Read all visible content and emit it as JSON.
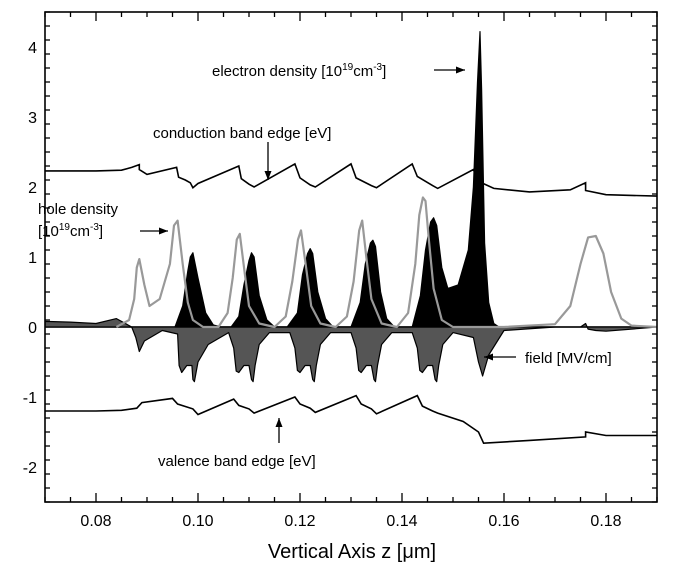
{
  "chart_data": {
    "type": "line",
    "title": "",
    "xlabel": "Vertical Axis z [μm]",
    "ylabel": "",
    "xlim": [
      0.07,
      0.19
    ],
    "ylim": [
      -2.5,
      4.5
    ],
    "x_ticks": [
      0.08,
      0.1,
      0.12,
      0.14,
      0.16,
      0.18
    ],
    "x_tick_labels": [
      "0.08",
      "0.10",
      "0.12",
      "0.14",
      "0.16",
      "0.18"
    ],
    "y_ticks": [
      -2,
      -1,
      0,
      1,
      2,
      3,
      4
    ],
    "y_tick_labels": [
      "-2",
      "-1",
      "0",
      "1",
      "2",
      "3",
      "4"
    ],
    "grid": false,
    "legend": "none",
    "colors": {
      "axes": "#000000",
      "band_edge": "#000000",
      "electron_fill": "#000000",
      "hole_line": "#999999",
      "field_fill": "#555555"
    },
    "series": [
      {
        "key": "conduction",
        "style": "line",
        "x": [
          0.07,
          0.075,
          0.08,
          0.085,
          0.087,
          0.0885,
          0.0885,
          0.09,
          0.0958,
          0.0962,
          0.0975,
          0.0985,
          0.099,
          0.1,
          0.108,
          0.1085,
          0.11,
          0.111,
          0.119,
          0.12,
          0.122,
          0.123,
          0.13,
          0.131,
          0.134,
          0.135,
          0.142,
          0.143,
          0.146,
          0.147,
          0.154,
          0.155,
          0.158,
          0.165,
          0.173,
          0.176,
          0.176,
          0.18,
          0.19
        ],
        "y": [
          2.23,
          2.23,
          2.23,
          2.24,
          2.28,
          2.32,
          2.25,
          2.18,
          2.28,
          2.14,
          2.1,
          2.06,
          1.99,
          2.05,
          2.3,
          2.12,
          2.04,
          2.0,
          2.33,
          2.13,
          2.03,
          2.0,
          2.33,
          2.13,
          2.02,
          1.99,
          2.33,
          2.15,
          2.02,
          1.98,
          2.25,
          2.08,
          1.98,
          1.93,
          1.96,
          2.06,
          1.95,
          1.89,
          1.87
        ]
      },
      {
        "key": "valence",
        "style": "line",
        "x": [
          0.07,
          0.075,
          0.08,
          0.085,
          0.088,
          0.089,
          0.095,
          0.096,
          0.099,
          0.1,
          0.107,
          0.108,
          0.11,
          0.111,
          0.119,
          0.12,
          0.122,
          0.123,
          0.131,
          0.132,
          0.134,
          0.135,
          0.143,
          0.144,
          0.146,
          0.147,
          0.152,
          0.155,
          0.156,
          0.165,
          0.176,
          0.176,
          0.18,
          0.19
        ],
        "y": [
          -1.2,
          -1.2,
          -1.2,
          -1.19,
          -1.16,
          -1.08,
          -1.02,
          -1.1,
          -1.17,
          -1.25,
          -1.03,
          -1.12,
          -1.17,
          -1.23,
          -1.0,
          -1.1,
          -1.16,
          -1.22,
          -0.98,
          -1.1,
          -1.17,
          -1.24,
          -0.98,
          -1.13,
          -1.2,
          -1.23,
          -1.35,
          -1.5,
          -1.66,
          -1.62,
          -1.57,
          -1.5,
          -1.55,
          -1.55
        ]
      },
      {
        "key": "electron",
        "style": "filled",
        "x": [
          0.0955,
          0.097,
          0.098,
          0.0985,
          0.099,
          0.1,
          0.1015,
          0.103,
          0.1045,
          0.1065,
          0.108,
          0.109,
          0.11,
          0.1105,
          0.111,
          0.112,
          0.1135,
          0.115,
          0.1175,
          0.1195,
          0.1205,
          0.1215,
          0.122,
          0.1225,
          0.1235,
          0.125,
          0.1265,
          0.13,
          0.1318,
          0.1328,
          0.1338,
          0.1343,
          0.1348,
          0.1358,
          0.137,
          0.1385,
          0.142,
          0.1436,
          0.1446,
          0.1456,
          0.1462,
          0.1468,
          0.1478,
          0.149,
          0.151,
          0.153,
          0.154,
          0.1548,
          0.1553,
          0.1556,
          0.1562,
          0.157,
          0.158,
          0.159
        ],
        "y": [
          0.0,
          0.3,
          0.8,
          1.0,
          1.06,
          0.7,
          0.2,
          0.03,
          0.0,
          0.0,
          0.15,
          0.6,
          0.95,
          1.06,
          1.0,
          0.45,
          0.1,
          0.0,
          0.0,
          0.2,
          0.75,
          1.05,
          1.12,
          1.05,
          0.5,
          0.12,
          0.0,
          0.0,
          0.35,
          0.9,
          1.2,
          1.24,
          1.15,
          0.5,
          0.12,
          0.0,
          0.0,
          0.45,
          1.1,
          1.5,
          1.56,
          1.45,
          0.85,
          0.55,
          0.6,
          1.1,
          2.0,
          3.5,
          4.22,
          3.4,
          1.2,
          0.35,
          0.05,
          0.0
        ]
      },
      {
        "key": "holes",
        "style": "line",
        "x": [
          0.084,
          0.0865,
          0.0875,
          0.088,
          0.0885,
          0.0895,
          0.0905,
          0.0925,
          0.0945,
          0.0953,
          0.096,
          0.097,
          0.098,
          0.099,
          0.101,
          0.104,
          0.1058,
          0.1068,
          0.1076,
          0.1082,
          0.1092,
          0.11,
          0.112,
          0.115,
          0.1172,
          0.1185,
          0.1196,
          0.1202,
          0.1212,
          0.1222,
          0.124,
          0.127,
          0.1292,
          0.1305,
          0.1316,
          0.1322,
          0.133,
          0.134,
          0.136,
          0.139,
          0.1412,
          0.1426,
          0.1434,
          0.1441,
          0.1446,
          0.1452,
          0.1462,
          0.1478,
          0.15,
          0.16,
          0.17,
          0.173,
          0.175,
          0.1765,
          0.178,
          0.1795,
          0.181,
          0.183,
          0.185,
          0.19
        ],
        "y": [
          0.0,
          0.1,
          0.4,
          0.85,
          0.97,
          0.6,
          0.3,
          0.4,
          0.9,
          1.45,
          1.52,
          0.9,
          0.35,
          0.1,
          0.0,
          0.0,
          0.2,
          0.7,
          1.25,
          1.33,
          0.75,
          0.3,
          0.05,
          0.0,
          0.15,
          0.65,
          1.25,
          1.38,
          0.85,
          0.3,
          0.05,
          0.0,
          0.15,
          0.65,
          1.38,
          1.52,
          1.0,
          0.4,
          0.05,
          0.0,
          0.2,
          0.9,
          1.6,
          1.85,
          1.8,
          1.3,
          0.55,
          0.1,
          0.0,
          0.0,
          0.04,
          0.3,
          0.9,
          1.28,
          1.3,
          1.05,
          0.5,
          0.12,
          0.02,
          0.0
        ]
      },
      {
        "key": "field",
        "style": "filled",
        "x": [
          0.07,
          0.075,
          0.08,
          0.084,
          0.087,
          0.0878,
          0.0885,
          0.0895,
          0.093,
          0.096,
          0.0963,
          0.0968,
          0.0978,
          0.0988,
          0.099,
          0.0993,
          0.1,
          0.102,
          0.106,
          0.107,
          0.1075,
          0.108,
          0.109,
          0.11,
          0.1105,
          0.1108,
          0.1112,
          0.112,
          0.114,
          0.118,
          0.119,
          0.1195,
          0.12,
          0.121,
          0.122,
          0.1225,
          0.1228,
          0.1232,
          0.124,
          0.126,
          0.13,
          0.131,
          0.1315,
          0.132,
          0.133,
          0.134,
          0.1345,
          0.1348,
          0.1352,
          0.136,
          0.138,
          0.142,
          0.143,
          0.1435,
          0.144,
          0.145,
          0.146,
          0.1465,
          0.1468,
          0.1472,
          0.148,
          0.15,
          0.154,
          0.155,
          0.1558,
          0.157,
          0.16,
          0.17,
          0.175,
          0.176,
          0.1765,
          0.178,
          0.18,
          0.19
        ],
        "y": [
          0.08,
          0.07,
          0.05,
          0.12,
          0.0,
          -0.15,
          -0.35,
          -0.2,
          -0.05,
          -0.1,
          -0.55,
          -0.65,
          -0.55,
          -0.55,
          -0.75,
          -0.78,
          -0.5,
          -0.25,
          -0.08,
          -0.3,
          -0.63,
          -0.65,
          -0.55,
          -0.55,
          -0.75,
          -0.78,
          -0.55,
          -0.25,
          -0.08,
          -0.08,
          -0.3,
          -0.62,
          -0.65,
          -0.55,
          -0.55,
          -0.75,
          -0.78,
          -0.55,
          -0.25,
          -0.08,
          -0.08,
          -0.3,
          -0.62,
          -0.65,
          -0.55,
          -0.55,
          -0.75,
          -0.78,
          -0.55,
          -0.25,
          -0.08,
          -0.08,
          -0.3,
          -0.62,
          -0.65,
          -0.55,
          -0.55,
          -0.75,
          -0.78,
          -0.55,
          -0.25,
          -0.08,
          -0.15,
          -0.5,
          -0.7,
          -0.4,
          -0.05,
          0.0,
          0.0,
          0.05,
          -0.03,
          -0.05,
          -0.06,
          0.0
        ]
      }
    ],
    "annotations": [
      {
        "key": "electron",
        "text": "electron density [10",
        "sup1": "19",
        "mid": "cm",
        "sup2": "-3",
        "end": "]"
      },
      {
        "key": "conduction",
        "text": "conduction band edge [eV]"
      },
      {
        "key": "hole1",
        "text": "hole density"
      },
      {
        "key": "hole2",
        "text": "[10",
        "sup1": "19",
        "mid": "cm",
        "sup2": "-3",
        "end": "]"
      },
      {
        "key": "field",
        "text": "field [MV/cm]"
      },
      {
        "key": "valence",
        "text": "valence band edge [eV]"
      }
    ]
  }
}
